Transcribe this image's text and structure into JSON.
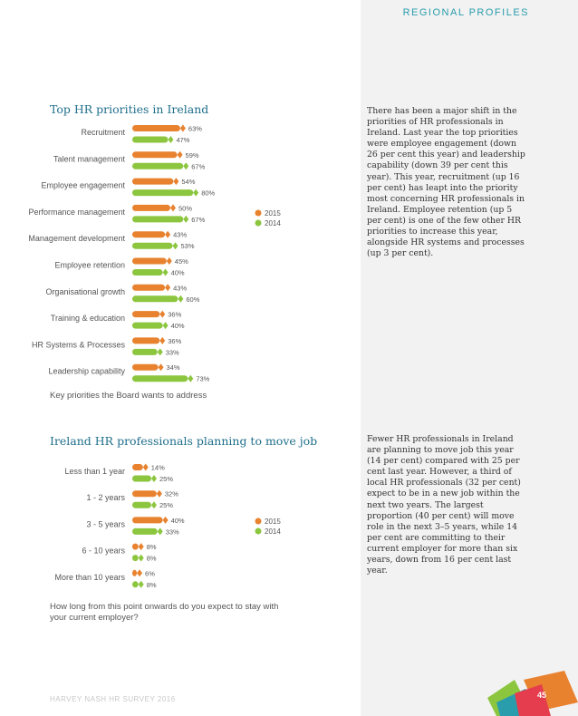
{
  "header": {
    "section_label": "REGIONAL PROFILES"
  },
  "colors": {
    "series_2015": "#e8822f",
    "series_2014": "#8cc63f",
    "title": "#1f6f8b",
    "accent": "#2a9dad"
  },
  "chart1": {
    "title": "Top HR priorities in Ireland",
    "caption": "Key priorities the Board wants to address"
  },
  "chart2": {
    "title": "Ireland HR professionals planning to move job",
    "caption_lines": [
      "How long from this point onwards do you expect to stay with",
      "your current employer?"
    ]
  },
  "text1": "There has been a major shift in the priorities of HR professionals in Ireland. Last year the top priorities were employee engagement (down 26 per cent this year) and leadership capability (down 39 per cent this year). This year, recruitment (up 16 per cent) has leapt into the priority most concerning HR professionals in Ireland. Employee retention (up 5 per cent) is one of the few other HR priorities to increase this year, alongside HR systems and processes (up 3 per cent).",
  "text2": "Fewer HR professionals in Ireland are planning to move job this year (14 per cent) compared with 25 per cent last year. However, a third of local HR professionals (32 per cent) expect to be in a new job within the next two years. The largest proportion (40 per cent) will move role in the next 3–5 years, while 14 per cent are committing to their current employer for more than six years, down from 16 per cent last year.",
  "footer": "HARVEY NASH HR SURVEY 2016",
  "page_number": "45",
  "chart_data": [
    {
      "type": "bar",
      "title": "Top HR priorities in Ireland",
      "categories": [
        "Recruitment",
        "Talent management",
        "Employee engagement",
        "Performance management",
        "Management development",
        "Employee retention",
        "Organisational growth",
        "Training & education",
        "HR Systems & Processes",
        "Leadership capability"
      ],
      "series": [
        {
          "name": "2015",
          "values": [
            63,
            59,
            54,
            50,
            43,
            45,
            43,
            36,
            36,
            34
          ]
        },
        {
          "name": "2014",
          "values": [
            47,
            67,
            80,
            67,
            53,
            40,
            60,
            40,
            33,
            73
          ]
        }
      ],
      "value_labels": {
        "2015": [
          "63%",
          "59%",
          "54%",
          "50%",
          "43%",
          "45%",
          "43%",
          "36%",
          "36%",
          "34%"
        ],
        "2014": [
          "47%",
          "67%",
          "80%",
          "67%",
          "53%",
          "40%",
          "60%",
          "40%",
          "33%",
          "73%"
        ]
      },
      "legend": {
        "placement": "right",
        "labels": [
          "2015",
          "2014"
        ]
      },
      "orientation": "horizontal"
    },
    {
      "type": "bar",
      "title": "Ireland HR professionals planning to move job",
      "categories": [
        "Less than 1 year",
        "1 - 2 years",
        "3 - 5 years",
        "6 - 10 years",
        "More than 10 years"
      ],
      "series": [
        {
          "name": "2015",
          "values": [
            14,
            32,
            40,
            8,
            6
          ]
        },
        {
          "name": "2014",
          "values": [
            25,
            25,
            33,
            8,
            8
          ]
        }
      ],
      "value_labels": {
        "2015": [
          "14%",
          "32%",
          "40%",
          "8%",
          "6%"
        ],
        "2014": [
          "25%",
          "25%",
          "33%",
          "8%",
          "8%"
        ]
      },
      "legend": {
        "placement": "right",
        "labels": [
          "2015",
          "2014"
        ]
      },
      "orientation": "horizontal"
    }
  ]
}
